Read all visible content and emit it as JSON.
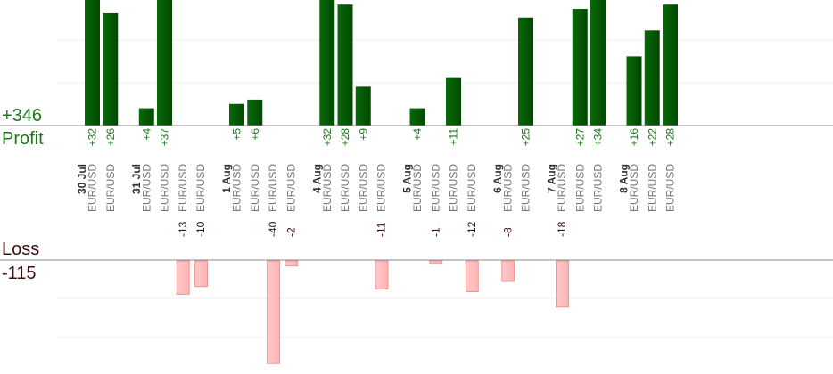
{
  "colors": {
    "profit_bar": "#0a6a0a",
    "profit_bar_dark": "#004800",
    "loss_bar": "#ffb3b3",
    "loss_bar_edge": "#e28a8a",
    "profit_text": "#1a7a1a",
    "loss_text": "#3a1010",
    "axis_line": "#888888",
    "grid": "#ececec",
    "tick_text": "#777777",
    "date_text": "#333333"
  },
  "profit_panel": {
    "total": "+346",
    "label": "Profit"
  },
  "loss_panel": {
    "label": "Loss",
    "total": "-115"
  },
  "chart_data": {
    "type": "bar",
    "days": [
      {
        "date": "30 Jul",
        "trades": [
          {
            "pair": "EUR/USD",
            "value": 32
          },
          {
            "pair": "EUR/USD",
            "value": 26
          }
        ]
      },
      {
        "date": "31 Jul",
        "trades": [
          {
            "pair": "EUR/USD",
            "value": 4
          },
          {
            "pair": "EUR/USD",
            "value": 37
          },
          {
            "pair": "EUR/USD",
            "value": -13
          },
          {
            "pair": "EUR/USD",
            "value": -10
          }
        ]
      },
      {
        "date": "1 Aug",
        "trades": [
          {
            "pair": "EUR/USD",
            "value": 5
          },
          {
            "pair": "EUR/USD",
            "value": 6
          },
          {
            "pair": "EUR/USD",
            "value": -40
          },
          {
            "pair": "EUR/USD",
            "value": -2
          }
        ]
      },
      {
        "date": "4 Aug",
        "trades": [
          {
            "pair": "EUR/USD",
            "value": 32
          },
          {
            "pair": "EUR/USD",
            "value": 28
          },
          {
            "pair": "EUR/USD",
            "value": 9
          },
          {
            "pair": "EUR/USD",
            "value": -11
          }
        ]
      },
      {
        "date": "5 Aug",
        "trades": [
          {
            "pair": "EUR/USD",
            "value": 4
          },
          {
            "pair": "EUR/USD",
            "value": -1
          },
          {
            "pair": "EUR/USD",
            "value": 11
          },
          {
            "pair": "EUR/USD",
            "value": -12
          }
        ]
      },
      {
        "date": "6 Aug",
        "trades": [
          {
            "pair": "EUR/USD",
            "value": -8
          },
          {
            "pair": "EUR/USD",
            "value": 25
          }
        ]
      },
      {
        "date": "7 Aug",
        "trades": [
          {
            "pair": "EUR/USD",
            "value": -18
          },
          {
            "pair": "EUR/USD",
            "value": 27
          },
          {
            "pair": "EUR/USD",
            "value": 34
          }
        ]
      },
      {
        "date": "8 Aug",
        "trades": [
          {
            "pair": "EUR/USD",
            "value": 16
          },
          {
            "pair": "EUR/USD",
            "value": 22
          },
          {
            "pair": "EUR/USD",
            "value": 28
          }
        ]
      }
    ]
  }
}
